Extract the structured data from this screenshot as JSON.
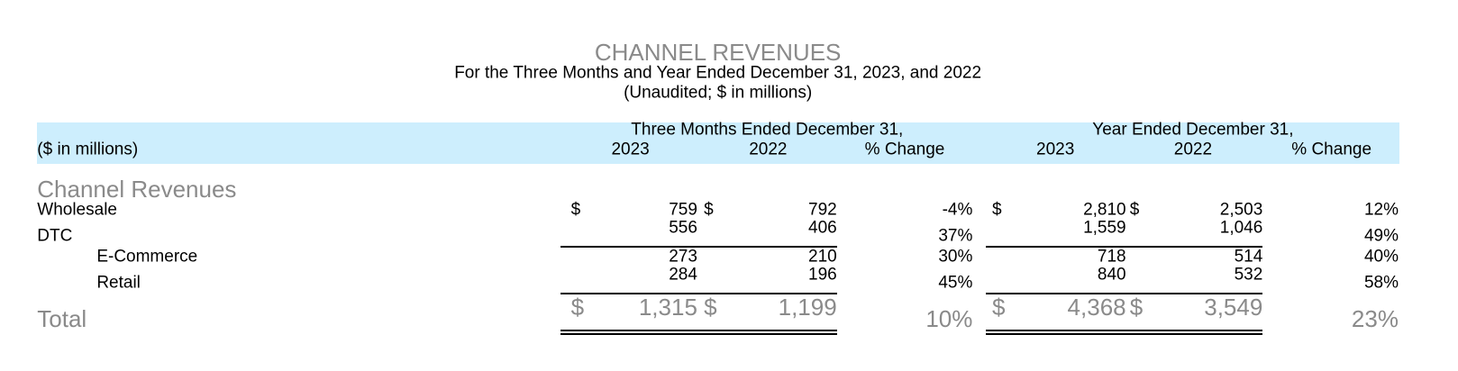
{
  "header": {
    "title": "CHANNEL REVENUES",
    "subtitle": "For the Three Months and Year Ended December 31, 2023, and 2022",
    "note": "(Unaudited; $ in millions)"
  },
  "table": {
    "unit_label": "($ in millions)",
    "groups": [
      {
        "title": "Three Months Ended December 31,",
        "columns": [
          "2023",
          "2022",
          "% Change"
        ]
      },
      {
        "title": "Year Ended December 31,",
        "columns": [
          "2023",
          "2022",
          "% Change"
        ]
      }
    ],
    "section": "Channel Revenues",
    "rows": [
      {
        "label": "Wholesale",
        "currency": "$",
        "values": [
          "759",
          "792",
          "-4%",
          "2,810",
          "2,503",
          "12%"
        ]
      },
      {
        "label": "DTC",
        "values": [
          "556",
          "406",
          "37%",
          "1,559",
          "1,046",
          "49%"
        ]
      },
      {
        "label": "E-Commerce",
        "values": [
          "273",
          "210",
          "30%",
          "718",
          "514",
          "40%"
        ]
      },
      {
        "label": "Retail",
        "values": [
          "284",
          "196",
          "45%",
          "840",
          "532",
          "58%"
        ]
      },
      {
        "label": "Total",
        "currency": "$",
        "values": [
          "1,315",
          "1,199",
          "10%",
          "4,368",
          "3,549",
          "23%"
        ]
      }
    ]
  }
}
